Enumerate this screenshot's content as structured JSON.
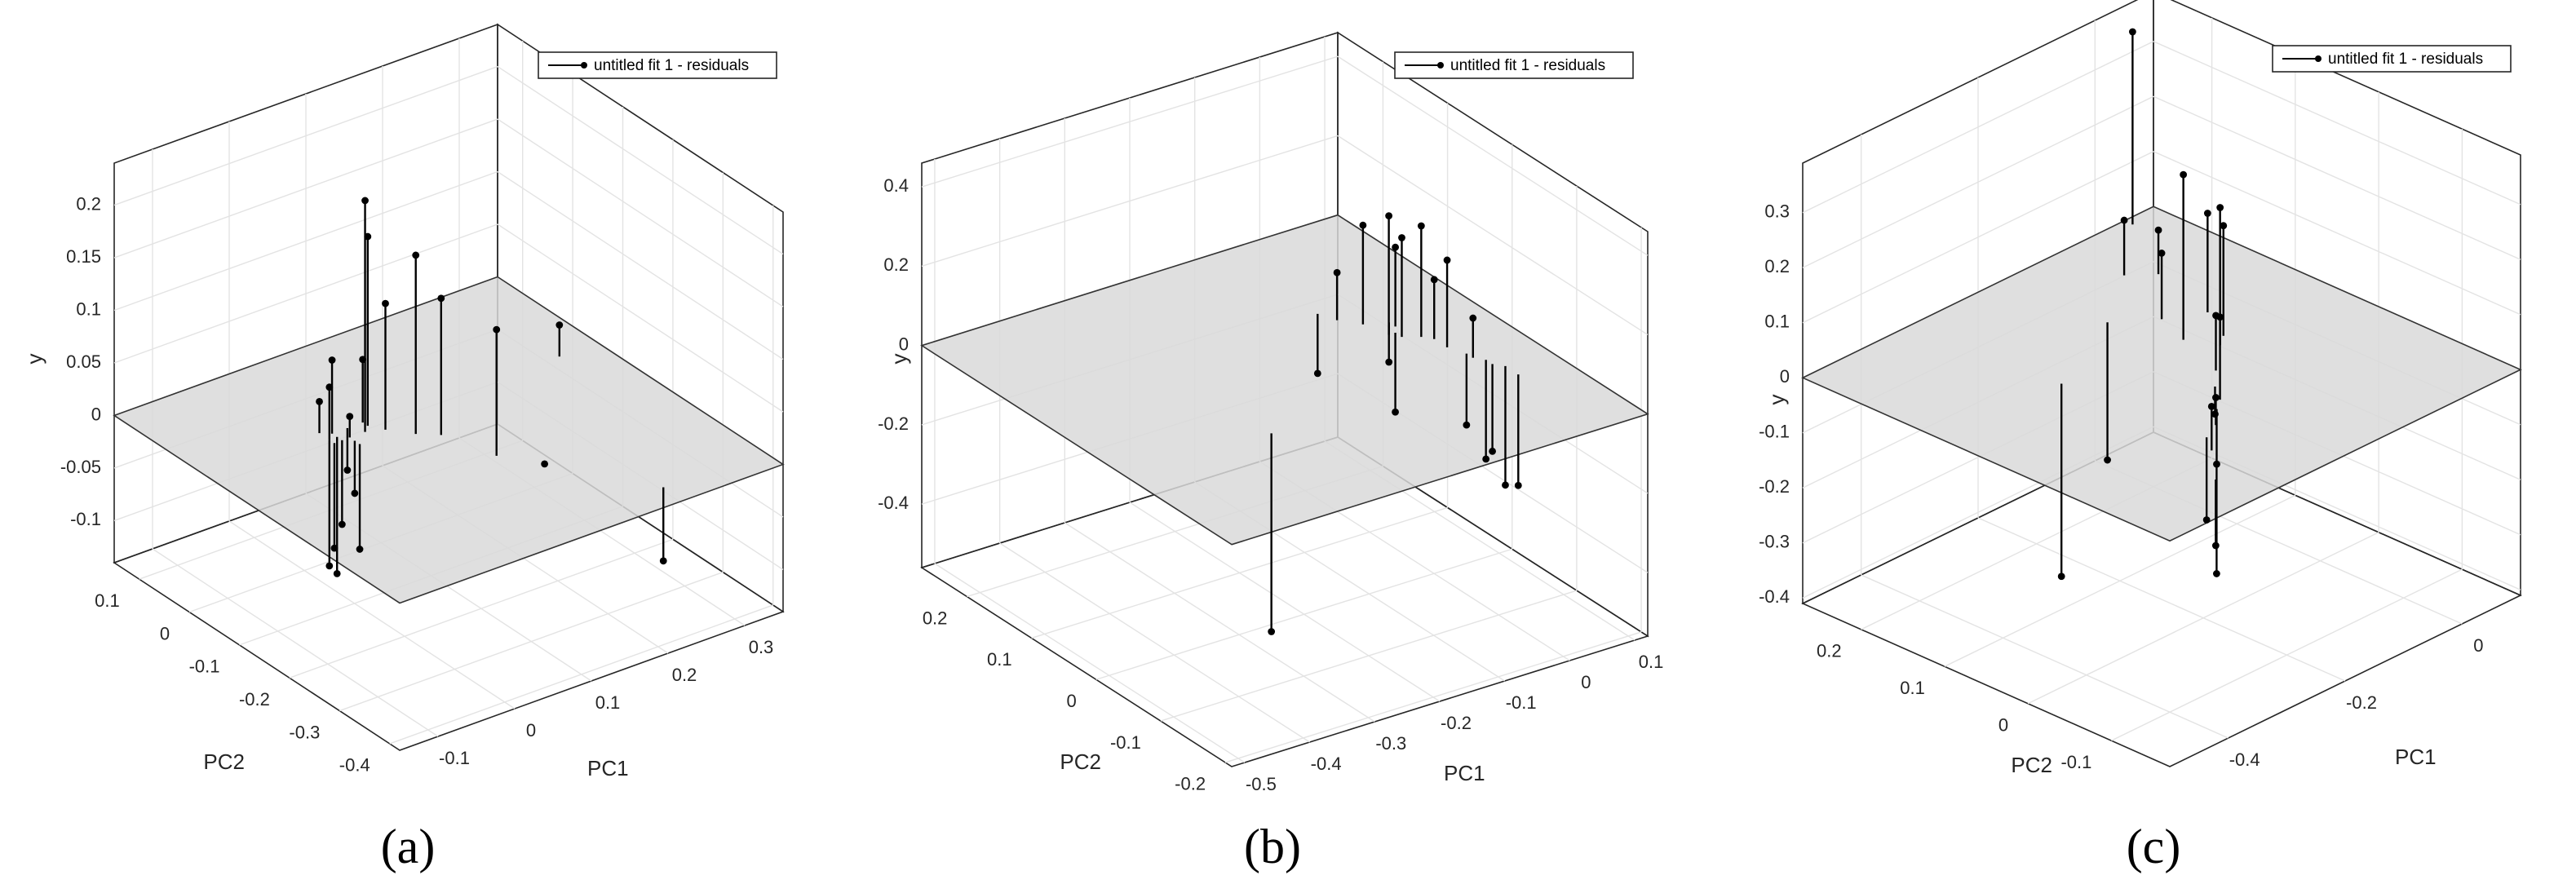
{
  "chart_data": [
    {
      "type": "residuals3d",
      "label": "(a)",
      "legend": "untitled fit 1 - residuals",
      "xlabel": "PC1",
      "ylabel": "PC2",
      "zlabel": "y",
      "xlim": [
        -0.15,
        0.35
      ],
      "xticks": [
        -0.1,
        0,
        0.1,
        0.2,
        0.3
      ],
      "ylim": [
        -0.42,
        0.15
      ],
      "yticks": [
        -0.4,
        -0.3,
        -0.2,
        -0.1,
        0,
        0.1
      ],
      "zlim": [
        -0.14,
        0.24
      ],
      "zticks": [
        -0.1,
        -0.05,
        0,
        0.05,
        0.1,
        0.15,
        0.2
      ],
      "plane_z": [
        0,
        0,
        0,
        0
      ],
      "color": "#000000",
      "plane_color": "#d9d9d9",
      "grid": true,
      "x": [
        0.0,
        0.0,
        0.01,
        0.0,
        0.01,
        0.02,
        0.0,
        0.01,
        0.02,
        0.03,
        0.02,
        0.04,
        0.05,
        0.05,
        0.06,
        0.08,
        0.1,
        0.12,
        0.15,
        0.22,
        0.3
      ],
      "y": [
        -0.05,
        -0.06,
        -0.04,
        -0.05,
        -0.06,
        -0.07,
        -0.03,
        -0.05,
        -0.06,
        -0.04,
        -0.08,
        -0.06,
        -0.05,
        -0.04,
        -0.07,
        -0.1,
        -0.12,
        -0.2,
        -0.25,
        -0.38,
        -0.05
      ],
      "z": [
        -0.12,
        -0.1,
        0.07,
        0.05,
        -0.08,
        -0.05,
        0.03,
        -0.13,
        0.02,
        -0.04,
        -0.1,
        0.22,
        0.18,
        0.06,
        0.12,
        0.17,
        0.13,
        0.12,
        0.0,
        -0.07,
        0.03
      ]
    },
    {
      "type": "residuals3d",
      "label": "(b)",
      "legend": "untitled fit 1 - residuals",
      "xlabel": "PC1",
      "ylabel": "PC2",
      "zlabel": "y",
      "xlim": [
        -0.52,
        0.12
      ],
      "xticks": [
        -0.5,
        -0.4,
        -0.3,
        -0.2,
        -0.1,
        0,
        0.1
      ],
      "ylim": [
        -0.21,
        0.27
      ],
      "yticks": [
        -0.2,
        -0.1,
        0,
        0.1,
        0.2
      ],
      "zlim": [
        -0.56,
        0.46
      ],
      "zticks": [
        -0.4,
        -0.2,
        0,
        0.2,
        0.4
      ],
      "plane_z": [
        0,
        0,
        0,
        0
      ],
      "color": "#000000",
      "plane_color": "#d9d9d9",
      "grid": true,
      "x": [
        -0.02,
        -0.01,
        0.0,
        0.01,
        0.02,
        0.0,
        -0.01,
        0.02,
        0.03,
        0.04,
        0.05,
        0.03,
        0.04,
        0.05,
        -0.05,
        -0.06,
        -0.03,
        -0.3
      ],
      "y": [
        0.05,
        0.04,
        0.06,
        0.03,
        0.02,
        0.07,
        0.05,
        0.0,
        -0.02,
        -0.04,
        -0.06,
        -0.03,
        -0.05,
        -0.08,
        0.1,
        0.12,
        0.08,
        -0.05
      ],
      "z": [
        0.3,
        0.25,
        0.2,
        0.28,
        0.15,
        -0.1,
        -0.2,
        0.22,
        -0.18,
        -0.25,
        -0.3,
        0.1,
        -0.22,
        -0.28,
        0.12,
        -0.15,
        0.25,
        -0.5
      ]
    },
    {
      "type": "residuals3d",
      "label": "(c)",
      "legend": "untitled fit 1 - residuals",
      "xlabel": "PC1",
      "ylabel": "PC2",
      "zlabel": "y",
      "xlim": [
        -0.5,
        0.1
      ],
      "xticks": [
        -0.4,
        -0.2,
        0
      ],
      "ylim": [
        -0.17,
        0.27
      ],
      "yticks": [
        -0.1,
        0,
        0.1,
        0.2
      ],
      "zlim": [
        -0.41,
        0.39
      ],
      "zticks": [
        -0.4,
        -0.3,
        -0.2,
        -0.1,
        0,
        0.1,
        0.2,
        0.3
      ],
      "plane_z": [
        0,
        0,
        0,
        0
      ],
      "color": "#000000",
      "plane_color": "#d9d9d9",
      "grid": true,
      "x": [
        -0.1,
        -0.12,
        -0.08,
        -0.15,
        -0.18,
        -0.2,
        -0.22,
        -0.25,
        -0.05,
        -0.1,
        -0.28,
        -0.3,
        -0.32,
        -0.35,
        -0.15,
        -0.3,
        0.05,
        -0.05,
        -0.02
      ],
      "y": [
        0.05,
        0.08,
        0.06,
        0.02,
        0.0,
        -0.02,
        -0.03,
        -0.05,
        0.1,
        0.12,
        -0.06,
        -0.08,
        -0.1,
        -0.12,
        0.15,
        0.1,
        0.26,
        0.2,
        0.18
      ],
      "z": [
        0.25,
        0.3,
        0.2,
        0.1,
        -0.05,
        0.15,
        -0.1,
        0.05,
        0.18,
        0.12,
        -0.15,
        0.08,
        -0.2,
        -0.12,
        -0.25,
        -0.35,
        0.35,
        0.1,
        0.08
      ]
    }
  ]
}
